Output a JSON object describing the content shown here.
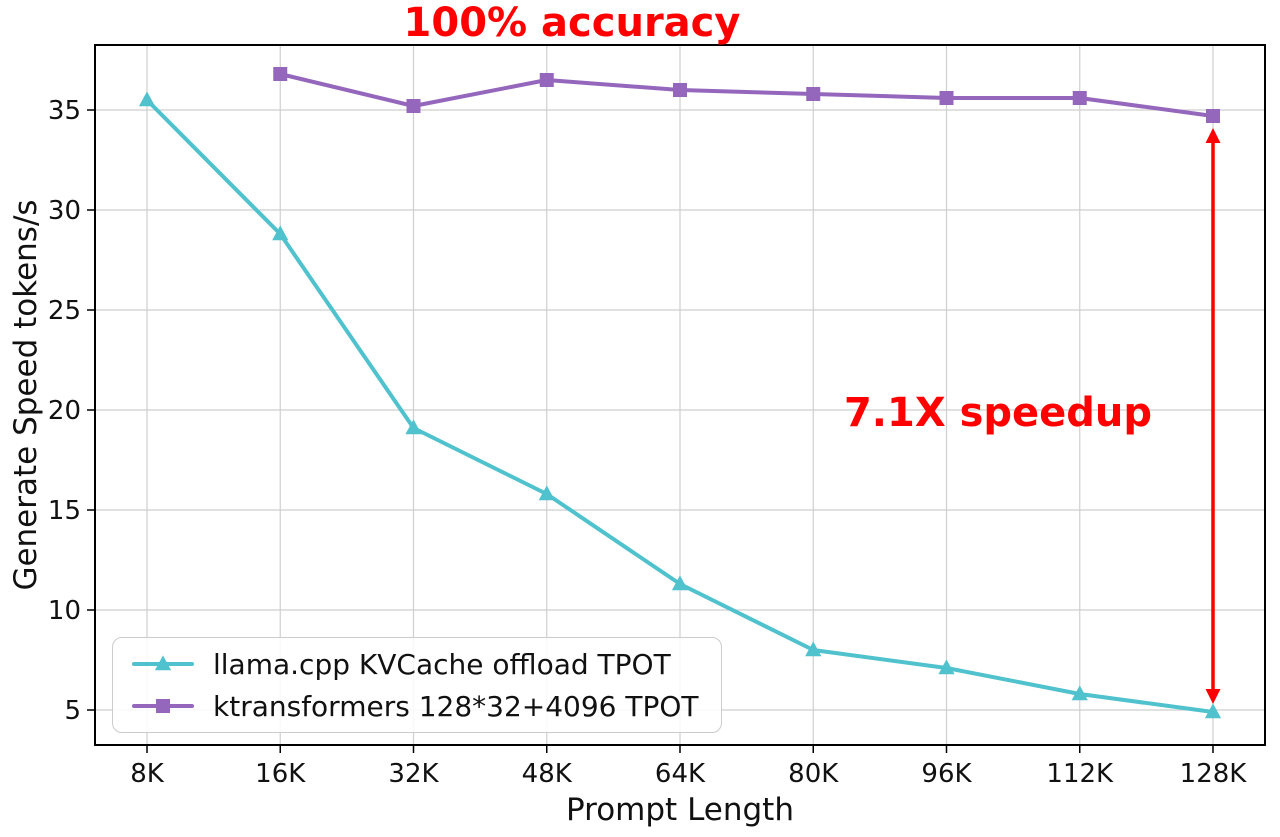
{
  "chart_data": {
    "type": "line",
    "title": "",
    "xlabel": "Prompt Length",
    "ylabel": "Generate Speed tokens/s",
    "categories": [
      "8K",
      "16K",
      "32K",
      "48K",
      "64K",
      "80K",
      "96K",
      "112K",
      "128K"
    ],
    "series": [
      {
        "name": "llama.cpp KVCache offload TPOT",
        "color": "#4fc2ce",
        "marker": "triangle",
        "values": [
          35.5,
          28.8,
          19.1,
          15.8,
          11.3,
          8.0,
          7.1,
          5.8,
          4.9
        ]
      },
      {
        "name": "ktransformers 128*32+4096 TPOT",
        "color": "#9467bd",
        "marker": "square",
        "values": [
          null,
          36.8,
          35.2,
          36.5,
          36.0,
          35.8,
          35.6,
          35.6,
          34.7
        ]
      }
    ],
    "yticks": [
      5,
      10,
      15,
      20,
      25,
      30,
      35
    ],
    "ylim": [
      3.25,
      38.25
    ],
    "grid": true,
    "legend_position": "lower-left",
    "annotations": [
      {
        "id": "accuracy",
        "text": "100% accuracy",
        "color": "#ff0000"
      },
      {
        "id": "speedup",
        "text": "7.1X speedup",
        "color": "#ff0000"
      }
    ],
    "arrow": {
      "x_category": "128K",
      "from": 34.7,
      "to": 4.9,
      "color": "#ff0000"
    }
  }
}
